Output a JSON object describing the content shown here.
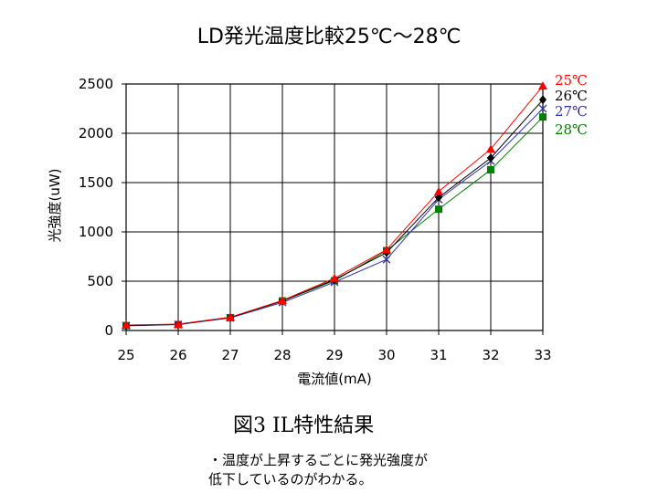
{
  "chart_data": {
    "type": "line",
    "title": "LD発光温度比較25℃～28℃",
    "xlabel": "電流値(mA)",
    "ylabel": "光強度(uW)",
    "x": [
      25,
      26,
      27,
      28,
      29,
      30,
      31,
      32,
      33
    ],
    "xlim": [
      25,
      33
    ],
    "ylim": [
      0,
      2500
    ],
    "yticks": [
      0,
      500,
      1000,
      1500,
      2000,
      2500
    ],
    "grid": true,
    "legend": "right-end labels",
    "series": [
      {
        "name": "25℃",
        "color": "#ff0000",
        "marker": "triangle",
        "values": [
          55,
          65,
          135,
          305,
          530,
          820,
          1410,
          1840,
          2480
        ]
      },
      {
        "name": "26℃",
        "color": "#000000",
        "marker": "diamond",
        "values": [
          50,
          62,
          132,
          300,
          515,
          790,
          1350,
          1750,
          2340
        ]
      },
      {
        "name": "27℃",
        "color": "#3333aa",
        "marker": "x",
        "values": [
          48,
          60,
          128,
          285,
          490,
          720,
          1330,
          1720,
          2250
        ]
      },
      {
        "name": "28℃",
        "color": "#008000",
        "marker": "square",
        "values": [
          50,
          60,
          130,
          300,
          505,
          810,
          1230,
          1630,
          2165
        ]
      }
    ]
  },
  "caption": "図3 IL特性結果",
  "note": {
    "line1": "・温度が上昇するごとに発光強度が",
    "line2": "低下しているのがわかる。"
  }
}
